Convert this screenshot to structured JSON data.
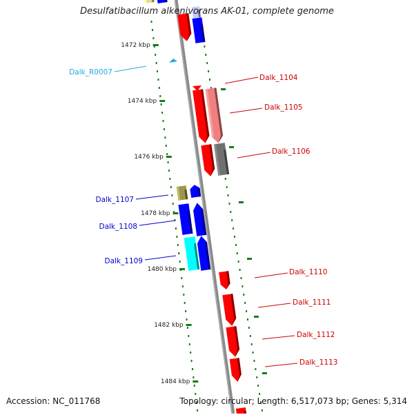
{
  "title": "Desulfatibacillum alkenivorans AK-01, complete genome",
  "accession": "Accession: NC_011768",
  "topology": "Topology: circular; Length: 6,517,073 bp; Genes: 5,314",
  "colors": {
    "red": "#ff0000",
    "blue": "#0000ff",
    "cyan": "#00ffff",
    "pink": "#f08080",
    "gray": "#707070",
    "olive": "#9c9650",
    "tick_green": "#1a7a1a",
    "trna": "#22aadd",
    "label_red": "#cc0000",
    "label_blue": "#0000cc",
    "label_cyan": "#22aadd"
  },
  "ticks": [
    "1472 kbp",
    "1474 kbp",
    "1476 kbp",
    "1478 kbp",
    "1480 kbp",
    "1482 kbp",
    "1484 kbp"
  ],
  "gene_labels": [
    {
      "name": "Dalk_R0007",
      "color": "label_cyan"
    },
    {
      "name": "Dalk_1104",
      "color": "label_red"
    },
    {
      "name": "Dalk_1105",
      "color": "label_red"
    },
    {
      "name": "Dalk_1106",
      "color": "label_red"
    },
    {
      "name": "Dalk_1107",
      "color": "label_blue"
    },
    {
      "name": "Dalk_1108",
      "color": "label_blue"
    },
    {
      "name": "Dalk_1109",
      "color": "label_blue"
    },
    {
      "name": "Dalk_1110",
      "color": "label_red"
    },
    {
      "name": "Dalk_1111",
      "color": "label_red"
    },
    {
      "name": "Dalk_1112",
      "color": "label_red"
    },
    {
      "name": "Dalk_1113",
      "color": "label_red"
    }
  ]
}
